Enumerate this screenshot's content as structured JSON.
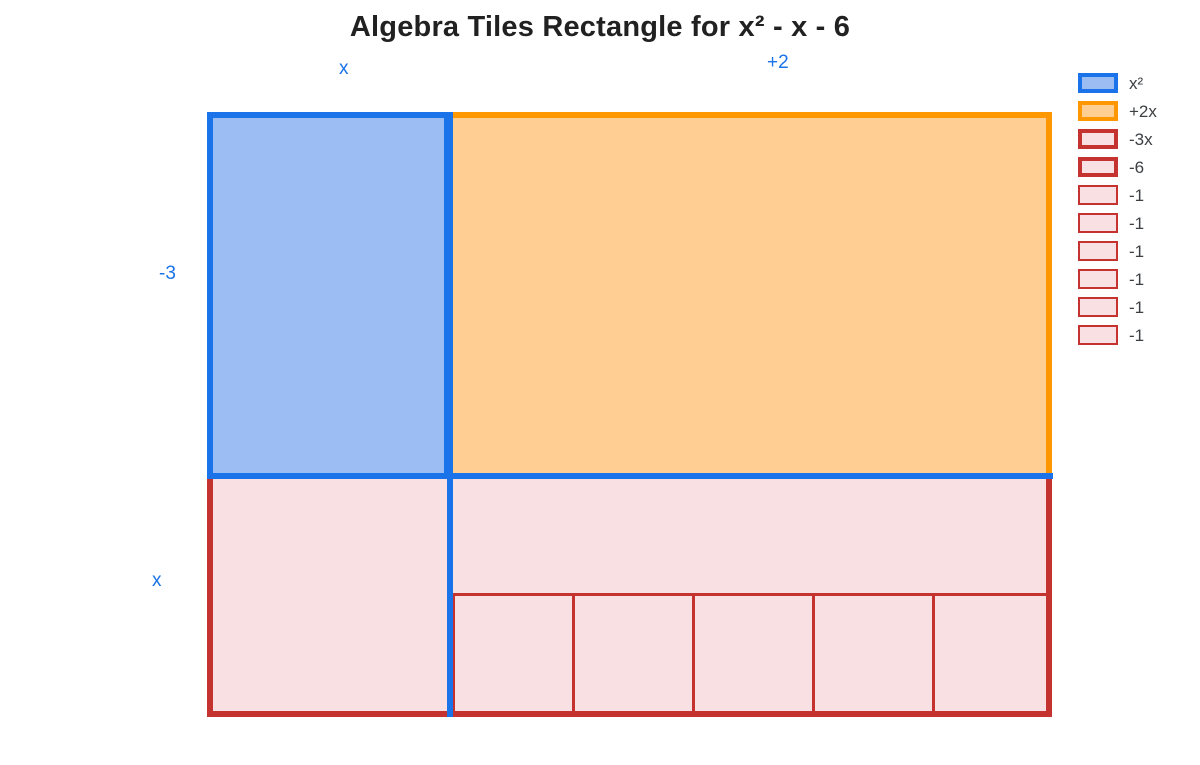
{
  "title": "Algebra Tiles Rectangle for x² - x - 6",
  "labels": {
    "top_width_left": "x",
    "top_width_right": "+2",
    "left_height_top": "-3",
    "left_height_bottom": "x"
  },
  "legend": {
    "items": [
      {
        "label": "x²",
        "swatch": "blue",
        "thick": true
      },
      {
        "label": "+2x",
        "swatch": "orange",
        "thick": true
      },
      {
        "label": "-3x",
        "swatch": "red",
        "thick": true
      },
      {
        "label": "-6",
        "swatch": "red",
        "thick": true
      },
      {
        "label": "-1",
        "swatch": "red",
        "thick": false
      },
      {
        "label": "-1",
        "swatch": "red",
        "thick": false
      },
      {
        "label": "-1",
        "swatch": "red",
        "thick": false
      },
      {
        "label": "-1",
        "swatch": "red",
        "thick": false
      },
      {
        "label": "-1",
        "swatch": "red",
        "thick": false
      },
      {
        "label": "-1",
        "swatch": "red",
        "thick": false
      }
    ]
  },
  "diagram": {
    "expression": "x² - x - 6",
    "width_terms": [
      "x",
      "+2"
    ],
    "height_terms": [
      "-3",
      "x"
    ],
    "tiles": [
      {
        "name": "x-squared",
        "legend_label": "x²",
        "color_key": "blue"
      },
      {
        "name": "plus-2x",
        "legend_label": "+2x",
        "color_key": "orange"
      },
      {
        "name": "minus-3x",
        "legend_label": "-3x",
        "color_key": "red"
      },
      {
        "name": "minus-6",
        "legend_label": "-6",
        "color_key": "red"
      }
    ],
    "minus6": {
      "unit_tiles": 6,
      "bottom_row_tiles": 5
    }
  },
  "colors": {
    "blue": "#1A73E8",
    "blue_fill": "#9CBDF4",
    "orange": "#FF9800",
    "orange_fill": "#FFCE92",
    "red": "#C43330",
    "red_fill": "#F9E1E3",
    "label_blue": "#1A73E8",
    "legend_text": "#3C4043",
    "title_text": "#212121"
  }
}
